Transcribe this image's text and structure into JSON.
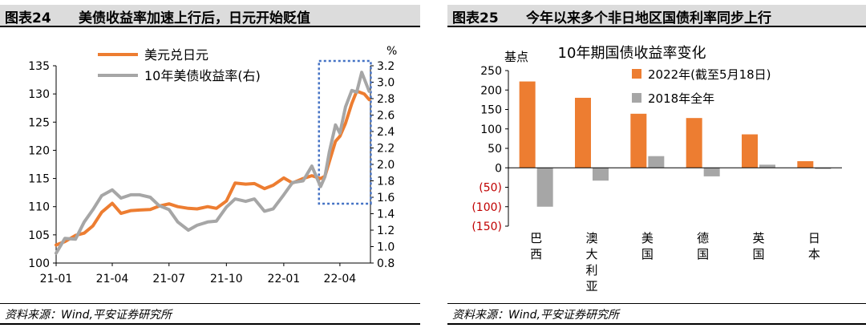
{
  "left_panel": {
    "figure_number": "图表24",
    "title": "美债收益率加速上行后，日元开始贬值",
    "source": "资料来源：Wind,平安证券研究所"
  },
  "right_panel": {
    "figure_number": "图表25",
    "title": "今年以来多个非日地区国债利率同步上行",
    "source": "资料来源：Wind,平安证券研究所"
  },
  "chart_data": [
    {
      "type": "line",
      "title": "",
      "x_ticks": [
        "21-01",
        "21-04",
        "21-07",
        "21-10",
        "22-01",
        "22-04"
      ],
      "y_left": {
        "ticks": [
          100,
          105,
          110,
          115,
          120,
          125,
          130,
          135
        ],
        "ylim": [
          100,
          135
        ]
      },
      "y_right": {
        "label": "%",
        "ticks": [
          0.8,
          1.0,
          1.2,
          1.4,
          1.6,
          1.8,
          2.0,
          2.2,
          2.4,
          2.6,
          2.8,
          3.0,
          3.2
        ],
        "ylim": [
          0.8,
          3.2
        ]
      },
      "legend_position": "top-center",
      "highlight_box": {
        "x_range": [
          "2022-03-01",
          "2022-05-18"
        ],
        "color": "#4472c4",
        "style": "dotted"
      },
      "series": [
        {
          "name": "美元兑日元",
          "axis": "left",
          "color": "#ed7d31",
          "points": [
            [
              "2021-01-01",
              103.2
            ],
            [
              "2021-01-15",
              103.8
            ],
            [
              "2021-02-01",
              104.9
            ],
            [
              "2021-02-15",
              105.3
            ],
            [
              "2021-03-01",
              106.6
            ],
            [
              "2021-03-15",
              109.0
            ],
            [
              "2021-04-01",
              110.6
            ],
            [
              "2021-04-15",
              108.8
            ],
            [
              "2021-05-01",
              109.3
            ],
            [
              "2021-05-15",
              109.4
            ],
            [
              "2021-06-01",
              109.5
            ],
            [
              "2021-06-15",
              110.1
            ],
            [
              "2021-07-01",
              110.5
            ],
            [
              "2021-07-15",
              110.0
            ],
            [
              "2021-08-01",
              109.7
            ],
            [
              "2021-08-15",
              109.6
            ],
            [
              "2021-09-01",
              110.0
            ],
            [
              "2021-09-15",
              109.7
            ],
            [
              "2021-10-01",
              111.0
            ],
            [
              "2021-10-15",
              114.2
            ],
            [
              "2021-11-01",
              114.0
            ],
            [
              "2021-11-15",
              114.1
            ],
            [
              "2021-12-01",
              113.2
            ],
            [
              "2021-12-15",
              113.8
            ],
            [
              "2022-01-01",
              115.1
            ],
            [
              "2022-01-15",
              114.2
            ],
            [
              "2022-02-01",
              115.0
            ],
            [
              "2022-02-15",
              115.5
            ],
            [
              "2022-03-01",
              115.0
            ],
            [
              "2022-03-08",
              115.4
            ],
            [
              "2022-03-15",
              118.0
            ],
            [
              "2022-03-25",
              121.6
            ],
            [
              "2022-04-01",
              122.5
            ],
            [
              "2022-04-10",
              124.8
            ],
            [
              "2022-04-20",
              128.3
            ],
            [
              "2022-04-28",
              130.5
            ],
            [
              "2022-05-10",
              130.0
            ],
            [
              "2022-05-18",
              129.0
            ]
          ]
        },
        {
          "name": "10年美债收益率(右)",
          "axis": "right",
          "color": "#a6a6a6",
          "points": [
            [
              "2021-01-01",
              0.92
            ],
            [
              "2021-01-15",
              1.1
            ],
            [
              "2021-02-01",
              1.09
            ],
            [
              "2021-02-15",
              1.3
            ],
            [
              "2021-03-01",
              1.45
            ],
            [
              "2021-03-15",
              1.62
            ],
            [
              "2021-04-01",
              1.69
            ],
            [
              "2021-04-15",
              1.59
            ],
            [
              "2021-05-01",
              1.63
            ],
            [
              "2021-05-15",
              1.63
            ],
            [
              "2021-06-01",
              1.6
            ],
            [
              "2021-06-15",
              1.5
            ],
            [
              "2021-07-01",
              1.45
            ],
            [
              "2021-07-15",
              1.3
            ],
            [
              "2021-08-01",
              1.2
            ],
            [
              "2021-08-15",
              1.26
            ],
            [
              "2021-09-01",
              1.3
            ],
            [
              "2021-09-15",
              1.31
            ],
            [
              "2021-10-01",
              1.48
            ],
            [
              "2021-10-15",
              1.58
            ],
            [
              "2021-11-01",
              1.55
            ],
            [
              "2021-11-15",
              1.58
            ],
            [
              "2021-12-01",
              1.43
            ],
            [
              "2021-12-15",
              1.46
            ],
            [
              "2022-01-01",
              1.63
            ],
            [
              "2022-01-15",
              1.78
            ],
            [
              "2022-02-01",
              1.8
            ],
            [
              "2022-02-15",
              1.98
            ],
            [
              "2022-03-01",
              1.73
            ],
            [
              "2022-03-08",
              1.85
            ],
            [
              "2022-03-15",
              2.15
            ],
            [
              "2022-03-25",
              2.48
            ],
            [
              "2022-04-01",
              2.38
            ],
            [
              "2022-04-10",
              2.7
            ],
            [
              "2022-04-20",
              2.9
            ],
            [
              "2022-04-28",
              2.88
            ],
            [
              "2022-05-06",
              3.12
            ],
            [
              "2022-05-18",
              2.89
            ]
          ]
        }
      ]
    },
    {
      "type": "bar",
      "title": "10年期国债收益率变化",
      "ylabel": "基点",
      "ylim": [
        -150,
        250
      ],
      "y_ticks": [
        "250",
        "200",
        "150",
        "100",
        "50",
        "0",
        "(50)",
        "(100)",
        "(150)"
      ],
      "y_tick_values": [
        250,
        200,
        150,
        100,
        50,
        0,
        -50,
        -100,
        -150
      ],
      "negative_label_color": "#c00000",
      "categories": [
        "巴西",
        "澳大利亚",
        "美国",
        "德国",
        "英国",
        "日本"
      ],
      "legend_position": "top-right",
      "series": [
        {
          "name": "2022年(截至5月18日)",
          "color": "#ed7d31",
          "values": [
            222,
            180,
            139,
            128,
            86,
            17
          ]
        },
        {
          "name": "2018年全年",
          "color": "#a6a6a6",
          "values": [
            -100,
            -33,
            30,
            -22,
            8,
            -3
          ]
        }
      ]
    }
  ]
}
